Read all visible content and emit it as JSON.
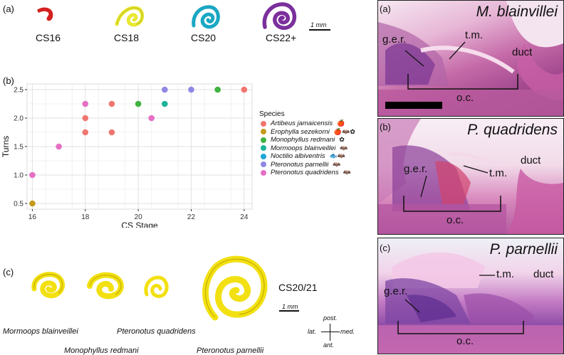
{
  "panel_a": {
    "label": "(a)",
    "stages": [
      "CS16",
      "CS18",
      "CS20",
      "CS22+"
    ],
    "scale": "1 mm",
    "colors": [
      "#d42020",
      "#e8e832",
      "#1aa7c4",
      "#7b2f9c"
    ]
  },
  "panel_b": {
    "label": "(b)",
    "legend_title": "Species",
    "species": [
      {
        "name": "Artibeus jamaicensis",
        "color": "#f0766f",
        "icons": "🍎"
      },
      {
        "name": "Erophylla sezekorni",
        "color": "#c49a1c",
        "icons": "🍎🦇✿"
      },
      {
        "name": "Monophyllus redmani",
        "color": "#3fb23f",
        "icons": "✿"
      },
      {
        "name": "Mormoops blainveillei",
        "color": "#1db397",
        "icons": "🦇"
      },
      {
        "name": "Noctilio albiventris",
        "color": "#1fa6d8",
        "icons": "🐟🦇"
      },
      {
        "name": "Pteronotus parnellii",
        "color": "#8f87e6",
        "icons": "🦇"
      },
      {
        "name": "Pteronotus quadridens",
        "color": "#e56fc4",
        "icons": "🦇"
      }
    ]
  },
  "chart_data": {
    "type": "scatter",
    "title": "",
    "xlabel": "CS Stage",
    "ylabel": "Turns",
    "xlim": [
      15.8,
      24.3
    ],
    "ylim": [
      0.4,
      2.6
    ],
    "xticks": [
      16,
      18,
      20,
      22,
      24
    ],
    "yticks": [
      0.5,
      1.0,
      1.5,
      2.0,
      2.5
    ],
    "ytick_labels": [
      "0.5",
      "1.0",
      "1.5",
      "2.0",
      "2.5"
    ],
    "series": [
      {
        "name": "Artibeus jamaicensis",
        "points": [
          [
            18,
            1.75
          ],
          [
            18,
            2.0
          ],
          [
            19,
            1.75
          ],
          [
            19,
            2.25
          ],
          [
            24,
            2.5
          ]
        ]
      },
      {
        "name": "Erophylla sezekorni",
        "points": [
          [
            16,
            0.5
          ]
        ]
      },
      {
        "name": "Monophyllus redmani",
        "points": [
          [
            20,
            2.25
          ],
          [
            23,
            2.5
          ]
        ]
      },
      {
        "name": "Mormoops blainveillei",
        "points": [
          [
            21,
            2.25
          ]
        ]
      },
      {
        "name": "Noctilio albiventris",
        "points": []
      },
      {
        "name": "Pteronotus parnellii",
        "points": [
          [
            21,
            2.5
          ],
          [
            22,
            2.5
          ]
        ]
      },
      {
        "name": "Pteronotus quadridens",
        "points": [
          [
            16,
            1.0
          ],
          [
            17,
            1.5
          ],
          [
            18,
            2.25
          ],
          [
            20.5,
            2.0
          ]
        ]
      }
    ]
  },
  "panel_c": {
    "label": "(c)",
    "stage": "CS20/21",
    "scale": "1 mm",
    "species": [
      "Mormoops blainveillei",
      "Monophyllus redmani",
      "Pteronotus quadridens",
      "Pteronotus parnellii"
    ],
    "orientation": {
      "post": "post.",
      "ant": "ant.",
      "lat": "lat.",
      "med": "med."
    }
  },
  "histology": [
    {
      "label": "(a)",
      "title": "M. blainvillei",
      "ger": "g.e.r.",
      "tm": "t.m.",
      "duct": "duct",
      "oc": "o.c."
    },
    {
      "label": "(b)",
      "title": "P. quadridens",
      "ger": "g.e.r.",
      "tm": "t.m.",
      "duct": "duct",
      "oc": "o.c."
    },
    {
      "label": "(c)",
      "title": "P. parnellii",
      "ger": "g.e.r.",
      "tm": "t.m.",
      "duct": "duct",
      "oc": "o.c."
    }
  ]
}
